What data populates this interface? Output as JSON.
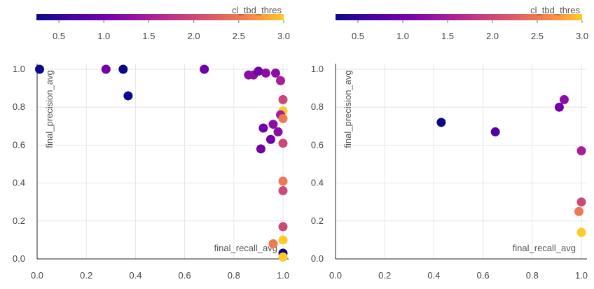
{
  "chart_data": [
    {
      "type": "scatter",
      "xlabel": "final_recall_avg",
      "ylabel": "final_precision_avg",
      "xlim": [
        0,
        1
      ],
      "ylim": [
        0,
        1
      ],
      "xticks": [
        "0.0",
        "0.2",
        "0.4",
        "0.6",
        "0.8",
        "1.0"
      ],
      "yticks": [
        "0.0",
        "0.2",
        "0.4",
        "0.6",
        "0.8",
        "1.0"
      ],
      "grid": true,
      "colorbar": {
        "label": "cl_tbd_thres",
        "range": [
          0.25,
          3.0
        ],
        "ticks": [
          "0.5",
          "1.0",
          "1.5",
          "2.0",
          "2.5",
          "3.0"
        ],
        "placement": "top"
      },
      "points": [
        {
          "x": 0.01,
          "y": 1.0,
          "c": 0.25
        },
        {
          "x": 0.28,
          "y": 1.0,
          "c": 1.0
        },
        {
          "x": 0.35,
          "y": 1.0,
          "c": 0.25
        },
        {
          "x": 0.37,
          "y": 0.86,
          "c": 0.25
        },
        {
          "x": 0.68,
          "y": 1.0,
          "c": 1.0
        },
        {
          "x": 0.86,
          "y": 0.97,
          "c": 1.25
        },
        {
          "x": 0.88,
          "y": 0.97,
          "c": 1.25
        },
        {
          "x": 0.9,
          "y": 0.99,
          "c": 1.0
        },
        {
          "x": 0.93,
          "y": 0.98,
          "c": 1.25
        },
        {
          "x": 0.97,
          "y": 0.98,
          "c": 1.25
        },
        {
          "x": 0.99,
          "y": 0.94,
          "c": 1.5
        },
        {
          "x": 1.0,
          "y": 0.84,
          "c": 2.0
        },
        {
          "x": 1.0,
          "y": 0.78,
          "c": 3.0
        },
        {
          "x": 0.99,
          "y": 0.76,
          "c": 1.5
        },
        {
          "x": 1.0,
          "y": 0.74,
          "c": 2.5
        },
        {
          "x": 0.96,
          "y": 0.71,
          "c": 1.25
        },
        {
          "x": 0.92,
          "y": 0.69,
          "c": 1.0
        },
        {
          "x": 0.98,
          "y": 0.67,
          "c": 1.25
        },
        {
          "x": 0.95,
          "y": 0.63,
          "c": 1.0
        },
        {
          "x": 1.0,
          "y": 0.61,
          "c": 2.0
        },
        {
          "x": 0.91,
          "y": 0.58,
          "c": 1.0
        },
        {
          "x": 1.0,
          "y": 0.41,
          "c": 2.5
        },
        {
          "x": 1.0,
          "y": 0.36,
          "c": 2.0
        },
        {
          "x": 1.0,
          "y": 0.17,
          "c": 2.0
        },
        {
          "x": 1.0,
          "y": 0.1,
          "c": 3.0
        },
        {
          "x": 0.96,
          "y": 0.08,
          "c": 2.5
        },
        {
          "x": 1.0,
          "y": 0.03,
          "c": 0.25
        },
        {
          "x": 1.0,
          "y": 0.01,
          "c": 3.0
        }
      ]
    },
    {
      "type": "scatter",
      "xlabel": "final_recall_avg",
      "ylabel": "final_precision_avg",
      "xlim": [
        0,
        1
      ],
      "ylim": [
        0,
        1
      ],
      "xticks": [
        "0.0",
        "0.2",
        "0.4",
        "0.6",
        "0.8",
        "1.0"
      ],
      "yticks": [
        "0.0",
        "0.2",
        "0.4",
        "0.6",
        "0.8",
        "1.0"
      ],
      "grid": true,
      "colorbar": {
        "label": "cl_tbd_thres",
        "range": [
          0.25,
          3.0
        ],
        "ticks": [
          "0.5",
          "1.0",
          "1.5",
          "2.0",
          "2.5",
          "3.0"
        ],
        "placement": "top"
      },
      "points": [
        {
          "x": 0.43,
          "y": 0.72,
          "c": 0.25
        },
        {
          "x": 0.65,
          "y": 0.67,
          "c": 0.75
        },
        {
          "x": 0.91,
          "y": 0.8,
          "c": 1.0
        },
        {
          "x": 0.93,
          "y": 0.84,
          "c": 1.25
        },
        {
          "x": 1.0,
          "y": 0.57,
          "c": 1.5
        },
        {
          "x": 1.0,
          "y": 0.3,
          "c": 2.0
        },
        {
          "x": 0.99,
          "y": 0.25,
          "c": 2.5
        },
        {
          "x": 1.0,
          "y": 0.14,
          "c": 3.0
        }
      ]
    }
  ]
}
